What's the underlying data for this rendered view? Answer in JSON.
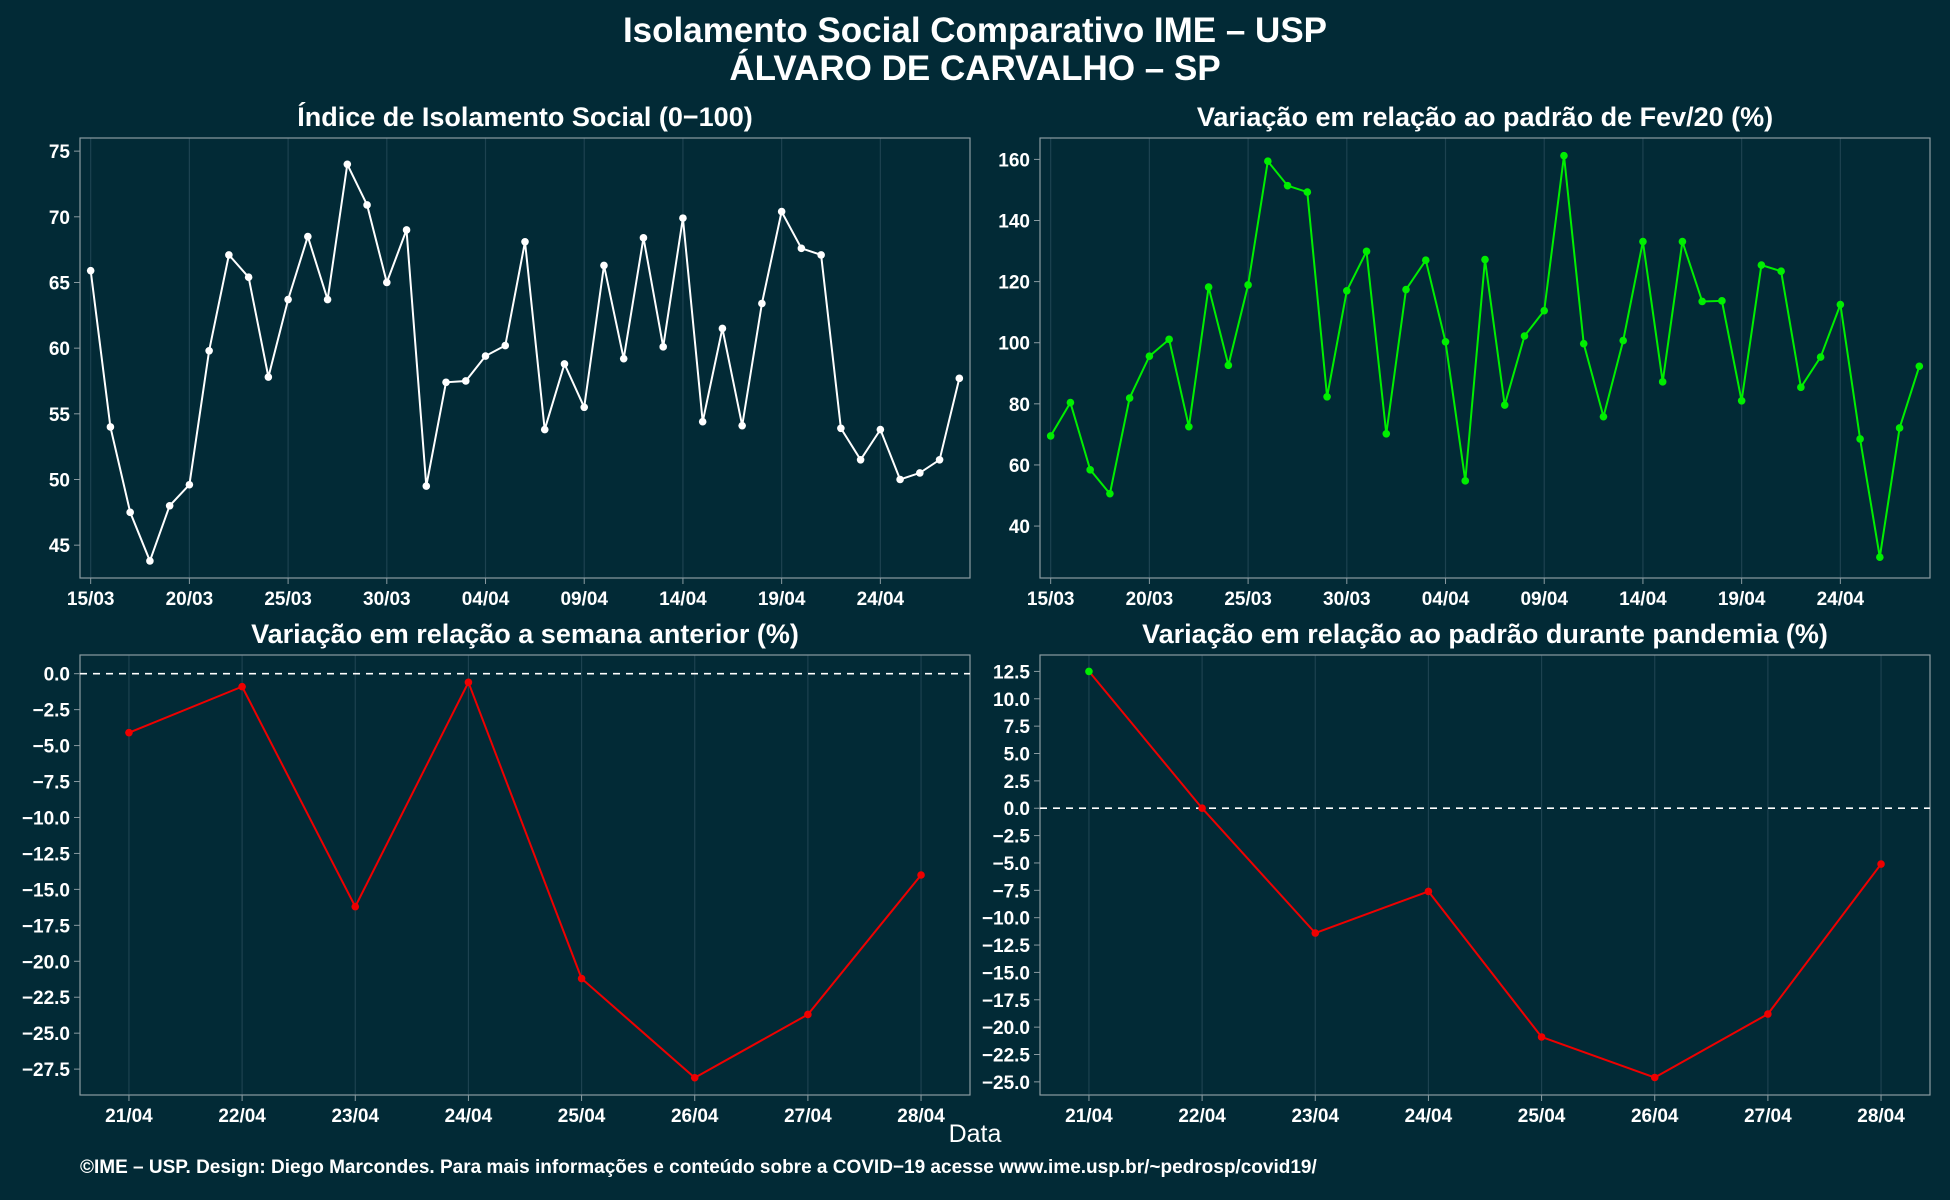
{
  "title_line1": "Isolamento Social Comparativo IME – USP",
  "title_line2": "ÁLVARO DE CARVALHO – SP",
  "xaxis_title": "Data",
  "credit": "©IME – USP. Design: Diego Marcondes. Para mais informações e conteúdo sobre a COVID−19 acesse www.ime.usp.br/~pedrosp/covid19/",
  "colors": {
    "background": "#022a36",
    "white": "#ffffff",
    "green": "#00ee00",
    "red": "#ee0000",
    "frame": "#8a9ba1",
    "grid": "#1d4250"
  },
  "chart_data": [
    {
      "id": "isolamento",
      "type": "line",
      "title": "Índice de Isolamento Social (0−100)",
      "x_start": "2020-03-15",
      "xticks": [
        "15/03",
        "20/03",
        "25/03",
        "30/03",
        "04/04",
        "09/04",
        "14/04",
        "19/04",
        "24/04"
      ],
      "ylim": [
        42.5,
        76
      ],
      "yticks": [
        45,
        50,
        55,
        60,
        65,
        70,
        75
      ],
      "ytick_labels": [
        "45",
        "50",
        "55",
        "60",
        "65",
        "70",
        "75"
      ],
      "dashed_zero": false,
      "series": [
        {
          "color": "#ffffff",
          "values": [
            65.9,
            54.0,
            47.5,
            43.8,
            48.0,
            49.6,
            59.8,
            67.1,
            65.4,
            57.8,
            63.7,
            68.5,
            63.7,
            74.0,
            70.9,
            65.0,
            69.0,
            49.5,
            57.4,
            57.5,
            59.4,
            60.2,
            68.1,
            53.8,
            58.8,
            55.5,
            66.3,
            59.2,
            68.4,
            60.1,
            69.9,
            54.4,
            61.5,
            54.1,
            63.4,
            70.4,
            67.6,
            67.1,
            53.9,
            51.5,
            53.8,
            50.0,
            50.5,
            51.5,
            57.7
          ]
        }
      ]
    },
    {
      "id": "fev20",
      "type": "line",
      "title": "Variação em relação ao padrão de Fev/20 (%)",
      "x_start": "2020-03-15",
      "xticks": [
        "15/03",
        "20/03",
        "25/03",
        "30/03",
        "04/04",
        "09/04",
        "14/04",
        "19/04",
        "24/04"
      ],
      "ylim": [
        23,
        167
      ],
      "yticks": [
        40,
        60,
        80,
        100,
        120,
        140,
        160
      ],
      "ytick_labels": [
        "40",
        "60",
        "80",
        "100",
        "120",
        "140",
        "160"
      ],
      "dashed_zero": false,
      "series": [
        {
          "color": "#00ee00",
          "values": [
            69.5,
            80.4,
            58.4,
            50.6,
            81.9,
            95.6,
            101.1,
            72.5,
            118.2,
            92.6,
            118.9,
            159.4,
            151.4,
            149.3,
            82.3,
            117.0,
            129.9,
            70.2,
            117.4,
            127.0,
            100.3,
            54.8,
            127.2,
            79.6,
            102.2,
            110.5,
            161.2,
            99.7,
            75.8,
            100.7,
            133.1,
            87.2,
            133.1,
            113.5,
            113.7,
            81.0,
            125.4,
            123.4,
            85.4,
            95.3,
            112.5,
            68.5,
            29.8,
            72.1,
            92.3
          ]
        }
      ]
    },
    {
      "id": "semana",
      "type": "line",
      "title": "Variação em relação a semana anterior (%)",
      "categories": [
        "21/04",
        "22/04",
        "23/04",
        "24/04",
        "25/04",
        "26/04",
        "27/04",
        "28/04"
      ],
      "ylim": [
        -29.3,
        1.3
      ],
      "yticks": [
        0,
        -2.5,
        -5,
        -7.5,
        -10,
        -12.5,
        -15,
        -17.5,
        -20,
        -22.5,
        -25,
        -27.5
      ],
      "ytick_labels": [
        "0.0",
        "−2.5",
        "−5.0",
        "−7.5",
        "−10.0",
        "−12.5",
        "−15.0",
        "−17.5",
        "−20.0",
        "−22.5",
        "−25.0",
        "−27.5"
      ],
      "dashed_zero": true,
      "series": [
        {
          "values": [
            -4.1,
            -0.9,
            -16.2,
            -0.6,
            -21.2,
            -28.1,
            -23.7,
            -14.0
          ],
          "colors": [
            "#ee0000",
            "#ee0000",
            "#ee0000",
            "#ee0000",
            "#ee0000",
            "#ee0000",
            "#ee0000",
            "#ee0000"
          ]
        }
      ]
    },
    {
      "id": "pandemia",
      "type": "line",
      "title": "Variação em relação ao padrão durante pandemia (%)",
      "categories": [
        "21/04",
        "22/04",
        "23/04",
        "24/04",
        "25/04",
        "26/04",
        "27/04",
        "28/04"
      ],
      "ylim": [
        -26.2,
        14.0
      ],
      "yticks": [
        12.5,
        10,
        7.5,
        5,
        2.5,
        0,
        -2.5,
        -5,
        -7.5,
        -10,
        -12.5,
        -15,
        -17.5,
        -20,
        -22.5,
        -25
      ],
      "ytick_labels": [
        "12.5",
        "10.0",
        "7.5",
        "5.0",
        "2.5",
        "0.0",
        "−2.5",
        "−5.0",
        "−7.5",
        "−10.0",
        "−12.5",
        "−15.0",
        "−17.5",
        "−20.0",
        "−22.5",
        "−25.0"
      ],
      "dashed_zero": true,
      "series": [
        {
          "values": [
            12.5,
            0.0,
            -11.4,
            -7.6,
            -20.9,
            -24.6,
            -18.8,
            -5.1
          ],
          "colors": [
            "#00ee00",
            "#ee0000",
            "#ee0000",
            "#ee0000",
            "#ee0000",
            "#ee0000",
            "#ee0000",
            "#ee0000"
          ]
        }
      ]
    }
  ]
}
